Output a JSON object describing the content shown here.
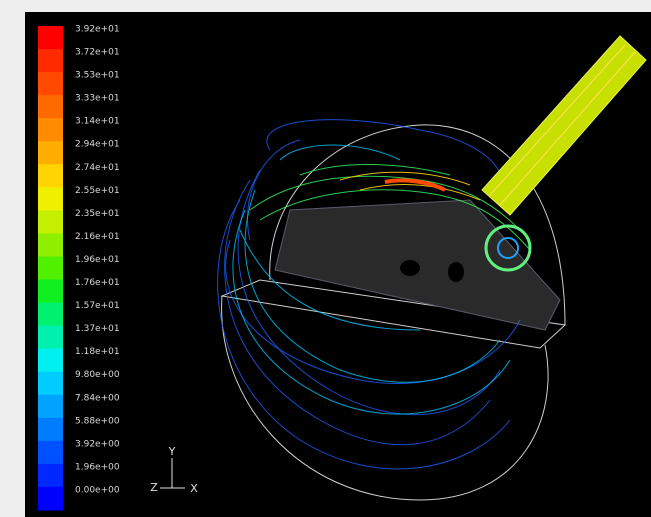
{
  "colorbar": {
    "labels": [
      "3.92e+01",
      "3.72e+01",
      "3.53e+01",
      "3.33e+01",
      "3.14e+01",
      "2.94e+01",
      "2.74e+01",
      "2.55e+01",
      "2.35e+01",
      "2.16e+01",
      "1.96e+01",
      "1.76e+01",
      "1.57e+01",
      "1.37e+01",
      "1.18e+01",
      "9.80e+00",
      "7.84e+00",
      "5.88e+00",
      "3.92e+00",
      "1.96e+00",
      "0.00e+00"
    ],
    "colors": [
      "#ff0000",
      "#ff2a00",
      "#ff4a00",
      "#ff6a00",
      "#ff8c00",
      "#ffae00",
      "#ffd400",
      "#eef000",
      "#c4f000",
      "#8ef000",
      "#50f000",
      "#10f020",
      "#00f070",
      "#00f0b0",
      "#00f0f0",
      "#00ccff",
      "#00a4ff",
      "#007cff",
      "#0052ff",
      "#0028ff",
      "#0000ff"
    ]
  },
  "axes_triad": {
    "y": "Y",
    "z": "Z",
    "x": "X"
  }
}
